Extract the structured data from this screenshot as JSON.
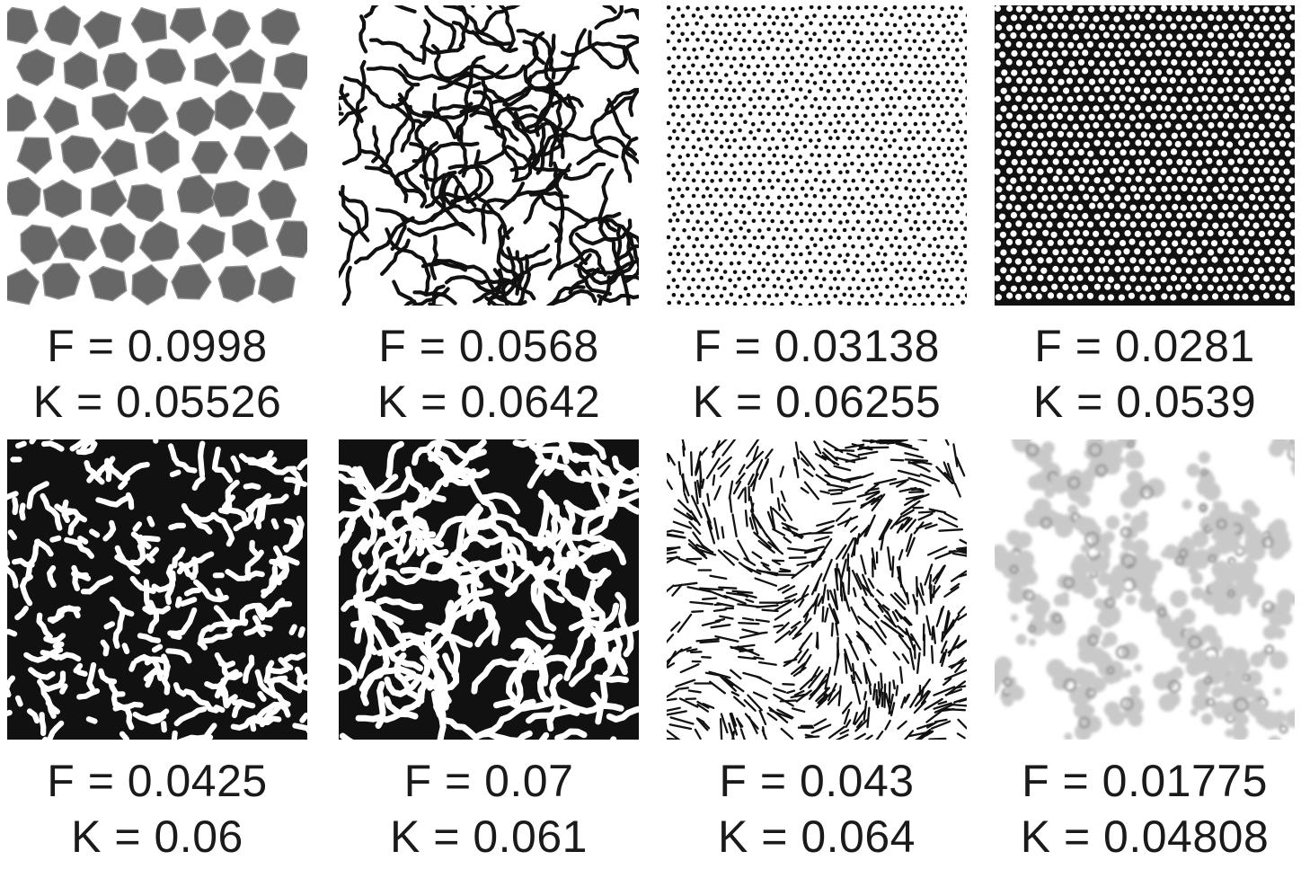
{
  "panels": [
    {
      "id": "p1",
      "pattern": "cells",
      "F": "F = 0.0998",
      "K": "K = 0.05526"
    },
    {
      "id": "p2",
      "pattern": "worms-thin",
      "F": "F = 0.0568",
      "K": "K = 0.0642"
    },
    {
      "id": "p3",
      "pattern": "spots-small",
      "F": "F = 0.03138",
      "K": "K = 0.06255"
    },
    {
      "id": "p4",
      "pattern": "holes",
      "F": "F = 0.0281",
      "K": "K = 0.0539"
    },
    {
      "id": "p5",
      "pattern": "maze-dense",
      "F": "F = 0.0425",
      "K": "K = 0.06"
    },
    {
      "id": "p6",
      "pattern": "maze",
      "F": "F = 0.07",
      "K": "K = 0.061"
    },
    {
      "id": "p7",
      "pattern": "dashes",
      "F": "F = 0.043",
      "K": "K = 0.064"
    },
    {
      "id": "p8",
      "pattern": "blobs-gray",
      "F": "F = 0.01775",
      "K": "K = 0.04808"
    }
  ],
  "colors": {
    "ink": "#111111",
    "cell_fill": "#676767",
    "cell_edge": "#ffffff",
    "blob_dark": "#8a8a8a",
    "blob_light": "#c9c9c9"
  }
}
